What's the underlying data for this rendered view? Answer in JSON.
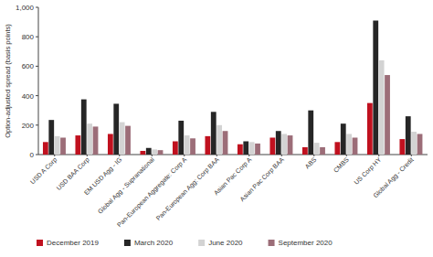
{
  "chart_data": {
    "type": "bar",
    "y_label": "Option-adjusted spread (basis points)",
    "categories": [
      "USD A Corp",
      "USD BAA Corp",
      "EM USD Agg - IG",
      "Global Agg - Supranational",
      "Pan-European Aggregate: Corp A",
      "Pan-European Agg: Corp BAA",
      "Asian Pac Corp A",
      "Asian Pac Corp BAA",
      "ABS",
      "CMBS",
      "US Corp HY",
      "Global Agg - Credit"
    ],
    "series": [
      {
        "name": "December 2019",
        "color": "#c0111f",
        "values": [
          85,
          130,
          140,
          25,
          90,
          125,
          70,
          115,
          50,
          85,
          350,
          105
        ]
      },
      {
        "name": "March 2020",
        "color": "#262626",
        "values": [
          235,
          375,
          345,
          45,
          230,
          290,
          90,
          160,
          300,
          210,
          910,
          260
        ]
      },
      {
        "name": "June 2020",
        "color": "#d3d3d3",
        "values": [
          125,
          210,
          220,
          35,
          130,
          200,
          85,
          140,
          80,
          140,
          640,
          155
        ]
      },
      {
        "name": "September 2020",
        "color": "#9c6d78",
        "values": [
          115,
          190,
          195,
          30,
          110,
          160,
          75,
          130,
          50,
          115,
          540,
          140
        ]
      }
    ],
    "ylim": [
      0,
      1000
    ],
    "yticks": [
      0,
      200,
      400,
      {
        "value": 600,
        "label": "600"
      },
      800,
      {
        "value": 1000,
        "label": "1,000"
      }
    ],
    "grid": false,
    "legend": "bottom"
  }
}
